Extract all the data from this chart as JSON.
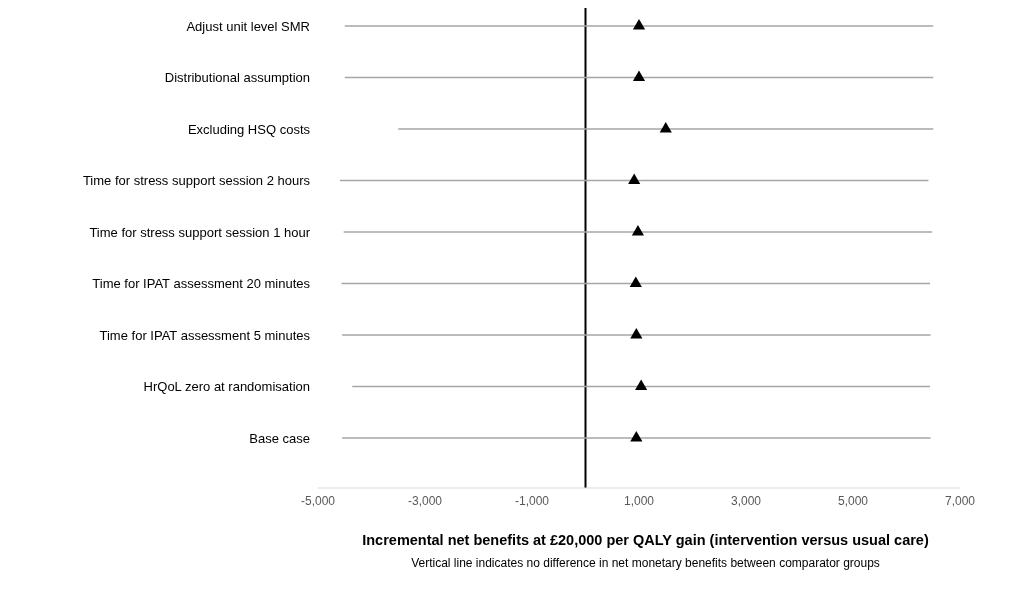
{
  "chart_data": {
    "type": "scatter",
    "orientation": "horizontal",
    "categories": [
      "Adjust unit level SMR",
      "Distributional assumption",
      "Excluding HSQ costs",
      "Time for stress support session 2 hours",
      "Time for stress support session 1 hour",
      "Time for IPAT assessment  20 minutes",
      "Time for IPAT assessment  5 minutes",
      "HrQoL zero at randomisation",
      "Base case"
    ],
    "values": [
      1000,
      1000,
      1500,
      910,
      980,
      940,
      950,
      1040,
      950
    ],
    "errors": [
      [
        5500,
        5500
      ],
      [
        5500,
        5500
      ],
      [
        5000,
        5000
      ],
      [
        5500,
        5500
      ],
      [
        5500,
        5500
      ],
      [
        5500,
        5500
      ],
      [
        5500,
        5500
      ],
      [
        5400,
        5400
      ],
      [
        5500,
        5500
      ]
    ],
    "color": "#000000",
    "marker": "triangle",
    "xlim": [
      -5000,
      7000
    ],
    "xticks": [
      {
        "value": -5000,
        "label": "-5,000"
      },
      {
        "value": -3000,
        "label": "-3,000"
      },
      {
        "value": -1000,
        "label": "-1,000"
      },
      {
        "value": 1000,
        "label": "1,000"
      },
      {
        "value": 3000,
        "label": "3,000"
      },
      {
        "value": 5000,
        "label": "5,000"
      },
      {
        "value": 7000,
        "label": "7,000"
      }
    ],
    "xlabel": "Incremental net benefits at £20,000 per QALY gain (intervention versus usual care)",
    "ref_lines": [
      {
        "axis": "x",
        "value": 0,
        "color": "#000000"
      }
    ],
    "annotations": [
      "Vertical line indicates no difference in net monetary benefits between comparator groups"
    ],
    "grid": false,
    "legend": false
  }
}
